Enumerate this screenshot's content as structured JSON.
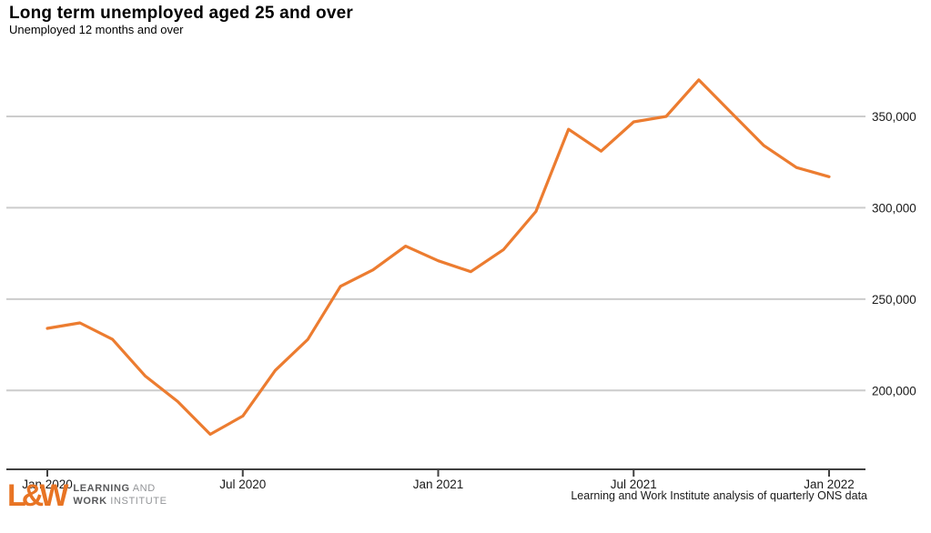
{
  "header": {
    "title": "Long term unemployed aged 25 and over",
    "subtitle": "Unemployed 12 months and over"
  },
  "chart_data": {
    "type": "line",
    "title": "Long term unemployed aged 25 and over",
    "subtitle": "Unemployed 12 months and over",
    "x": [
      "Jan 2020",
      "Feb 2020",
      "Mar 2020",
      "Apr 2020",
      "May 2020",
      "Jun 2020",
      "Jul 2020",
      "Aug 2020",
      "Sep 2020",
      "Oct 2020",
      "Nov 2020",
      "Dec 2020",
      "Jan 2021",
      "Feb 2021",
      "Mar 2021",
      "Apr 2021",
      "May 2021",
      "Jun 2021",
      "Jul 2021",
      "Aug 2021",
      "Sep 2021",
      "Oct 2021",
      "Nov 2021",
      "Dec 2021",
      "Jan 2022"
    ],
    "series": [
      {
        "name": "Long term unemployed aged 25 and over",
        "color": "#ec7c30",
        "values": [
          234000,
          237000,
          228000,
          208000,
          194000,
          176000,
          186000,
          211000,
          228000,
          257000,
          266000,
          279000,
          271000,
          265000,
          277000,
          298000,
          343000,
          331000,
          347000,
          350000,
          370000,
          352000,
          334000,
          322000,
          317000
        ]
      }
    ],
    "xlabel": "",
    "ylabel": "",
    "ylim": [
      157000,
      385000
    ],
    "grid": "horizontal",
    "legend": "none",
    "y_axis": {
      "ticks": [
        {
          "value": 200000,
          "label": "200,000"
        },
        {
          "value": 250000,
          "label": "250,000"
        },
        {
          "value": 300000,
          "label": "300,000"
        },
        {
          "value": 350000,
          "label": "350,000"
        }
      ],
      "side": "right"
    },
    "x_axis": {
      "ticks": [
        {
          "index": 0,
          "label": "Jan 2020"
        },
        {
          "index": 6,
          "label": "Jul 2020"
        },
        {
          "index": 12,
          "label": "Jan 2021"
        },
        {
          "index": 18,
          "label": "Jul 2021"
        },
        {
          "index": 24,
          "label": "Jan 2022"
        }
      ]
    },
    "colors": {
      "line": "#ec7c30",
      "gridline": "#cccccc",
      "axis": "#404040",
      "text": "#1a1a1a"
    }
  },
  "footer": {
    "logo": {
      "mark": "L&W",
      "line1_bold": "LEARNING",
      "line1_light": " AND",
      "line2_bold": "WORK",
      "line2_light": " INSTITUTE"
    },
    "caption": "Learning and Work Institute analysis of quarterly ONS data"
  }
}
